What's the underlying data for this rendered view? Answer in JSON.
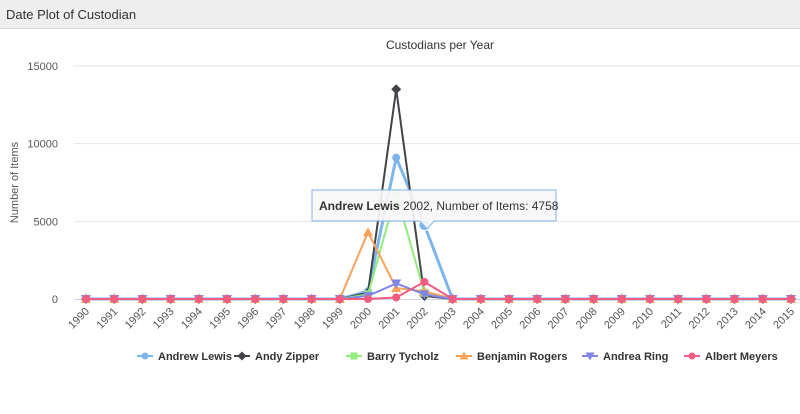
{
  "panel": {
    "title": "Date Plot of Custodian"
  },
  "chart_data": {
    "type": "line",
    "title": "Custodians per Year",
    "ylabel": "Number of Items",
    "xlabel": "",
    "ylim": [
      0,
      15000
    ],
    "yticks": [
      0,
      5000,
      10000,
      15000
    ],
    "grid": true,
    "legend_position": "bottom",
    "categories": [
      "1990",
      "1991",
      "1992",
      "1993",
      "1994",
      "1995",
      "1996",
      "1997",
      "1998",
      "1999",
      "2000",
      "2001",
      "2002",
      "2003",
      "2004",
      "2005",
      "2006",
      "2007",
      "2008",
      "2009",
      "2010",
      "2011",
      "2012",
      "2013",
      "2014",
      "2015"
    ],
    "series": [
      {
        "name": "Andrew Lewis",
        "color": "#7cb5ec",
        "marker": "circle",
        "values": [
          0,
          0,
          0,
          0,
          0,
          0,
          0,
          0,
          0,
          0,
          500,
          9100,
          4758,
          0,
          0,
          0,
          0,
          0,
          0,
          0,
          0,
          0,
          0,
          0,
          0,
          0
        ]
      },
      {
        "name": "Andy Zipper",
        "color": "#434348",
        "marker": "diamond",
        "values": [
          0,
          0,
          0,
          0,
          0,
          0,
          0,
          0,
          0,
          0,
          400,
          13500,
          200,
          0,
          0,
          0,
          0,
          0,
          0,
          0,
          0,
          0,
          0,
          0,
          0,
          0
        ]
      },
      {
        "name": "Barry Tycholz",
        "color": "#90ed7d",
        "marker": "square",
        "values": [
          0,
          0,
          0,
          0,
          0,
          0,
          0,
          0,
          0,
          0,
          300,
          6800,
          400,
          0,
          0,
          0,
          0,
          0,
          0,
          0,
          0,
          0,
          0,
          0,
          0,
          0
        ]
      },
      {
        "name": "Benjamin Rogers",
        "color": "#f7a35c",
        "marker": "triangle",
        "values": [
          0,
          0,
          0,
          0,
          0,
          0,
          0,
          0,
          0,
          0,
          4300,
          700,
          500,
          0,
          0,
          0,
          0,
          0,
          0,
          0,
          0,
          0,
          0,
          0,
          0,
          0
        ]
      },
      {
        "name": "Andrea Ring",
        "color": "#8085e9",
        "marker": "triangle-down",
        "values": [
          0,
          0,
          0,
          0,
          0,
          0,
          0,
          0,
          0,
          0,
          200,
          1000,
          300,
          0,
          0,
          0,
          0,
          0,
          0,
          0,
          0,
          0,
          0,
          0,
          0,
          0
        ]
      },
      {
        "name": "Albert Meyers",
        "color": "#f15c80",
        "marker": "circle",
        "values": [
          0,
          0,
          0,
          0,
          0,
          0,
          0,
          0,
          0,
          0,
          0,
          100,
          1100,
          0,
          0,
          0,
          0,
          0,
          0,
          0,
          0,
          0,
          0,
          0,
          0,
          0
        ]
      }
    ],
    "tooltip": {
      "series_name": "Andrew Lewis",
      "text": " 2002, Number of Items: 4758",
      "series_index": 0,
      "point_index": 12
    }
  }
}
